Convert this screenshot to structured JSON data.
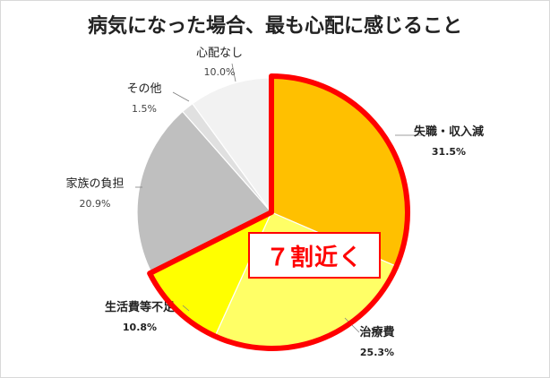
{
  "chart_data": {
    "type": "pie",
    "title": "病気になった場合、最も心配に感じること",
    "start_angle_deg": 0,
    "direction": "clockwise",
    "slices": [
      {
        "label": "失職・収入減",
        "value_label": "31.5%",
        "value": 31.5,
        "color": "#ffc000"
      },
      {
        "label": "治療費",
        "value_label": "25.3%",
        "value": 25.3,
        "color": "#ffff66"
      },
      {
        "label": "生活費等不足",
        "value_label": "10.8%",
        "value": 10.8,
        "color": "#ffff00"
      },
      {
        "label": "家族の負担",
        "value_label": "20.9%",
        "value": 20.9,
        "color": "#bfbfbf"
      },
      {
        "label": "その他",
        "value_label": "1.5%",
        "value": 1.5,
        "color": "#e0e0e0"
      },
      {
        "label": "心配なし",
        "value_label": "10.0%",
        "value": 10.0,
        "color": "#f2f2f2"
      }
    ],
    "highlight": {
      "text": "７割近く",
      "slices": [
        "失職・収入減",
        "治療費",
        "生活費等不足"
      ],
      "color": "#ff0000"
    }
  }
}
